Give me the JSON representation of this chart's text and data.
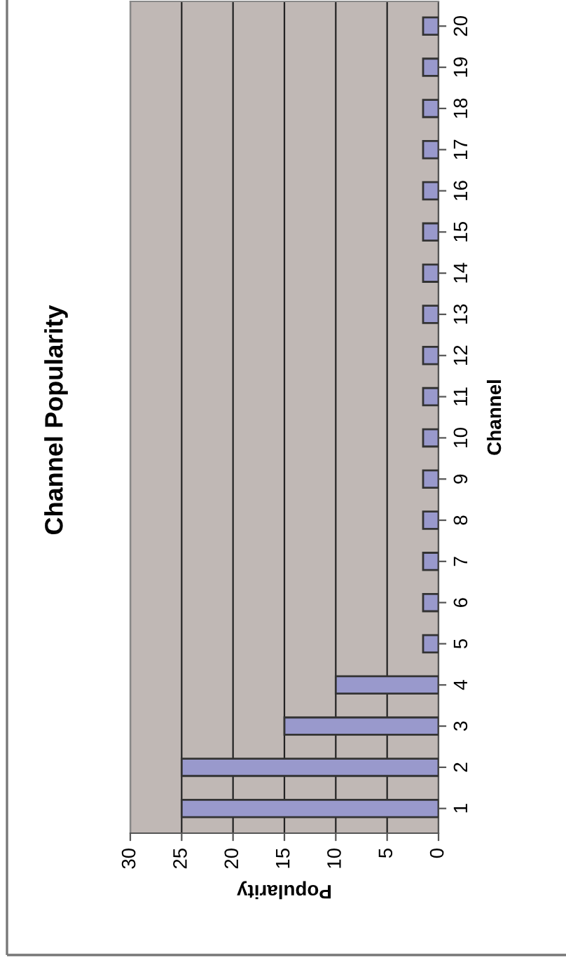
{
  "chart_data": {
    "type": "bar",
    "orientation": "horizontal",
    "title": "Channel Popularity",
    "xlabel": "Popularity",
    "ylabel": "Channel",
    "categories": [
      "20",
      "19",
      "18",
      "17",
      "16",
      "15",
      "14",
      "13",
      "12",
      "11",
      "10",
      "9",
      "8",
      "7",
      "6",
      "5",
      "4",
      "3",
      "2",
      "1"
    ],
    "values": [
      1.5,
      1.5,
      1.5,
      1.5,
      1.5,
      1.5,
      1.5,
      1.5,
      1.5,
      1.5,
      1.5,
      1.5,
      1.5,
      1.5,
      1.5,
      1.5,
      10,
      15,
      25,
      25
    ],
    "color": "#9999cc",
    "xlim": [
      30,
      0
    ],
    "xticks": [
      30,
      25,
      20,
      15,
      10,
      5,
      0
    ],
    "grid": "x"
  }
}
